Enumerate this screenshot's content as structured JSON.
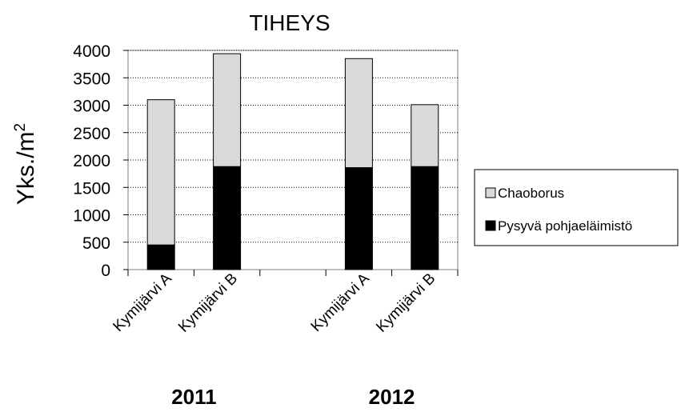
{
  "chart_data": {
    "type": "bar",
    "stacked": true,
    "title": "TIHEYS",
    "ylabel": "Yks./m",
    "ylabel_superscript": "2",
    "ylim": [
      0,
      4000
    ],
    "yticks": [
      0,
      500,
      1000,
      1500,
      2000,
      2500,
      3000,
      3500,
      4000
    ],
    "grid": "horizontal dotted",
    "legend_position": "right",
    "categories": [
      "Kymijärvi A",
      "Kymijärvi B",
      "",
      "Kymijärvi A",
      "Kymijärvi B"
    ],
    "groups": [
      "2011",
      "2012"
    ],
    "series": [
      {
        "name": "Pysyvä pohjaeläimistö",
        "color": "#000000",
        "values": [
          450,
          1880,
          null,
          1860,
          1880
        ]
      },
      {
        "name": "Chaoborus",
        "color": "#d9d9d9",
        "values": [
          2650,
          2060,
          null,
          1990,
          1130
        ]
      }
    ]
  }
}
